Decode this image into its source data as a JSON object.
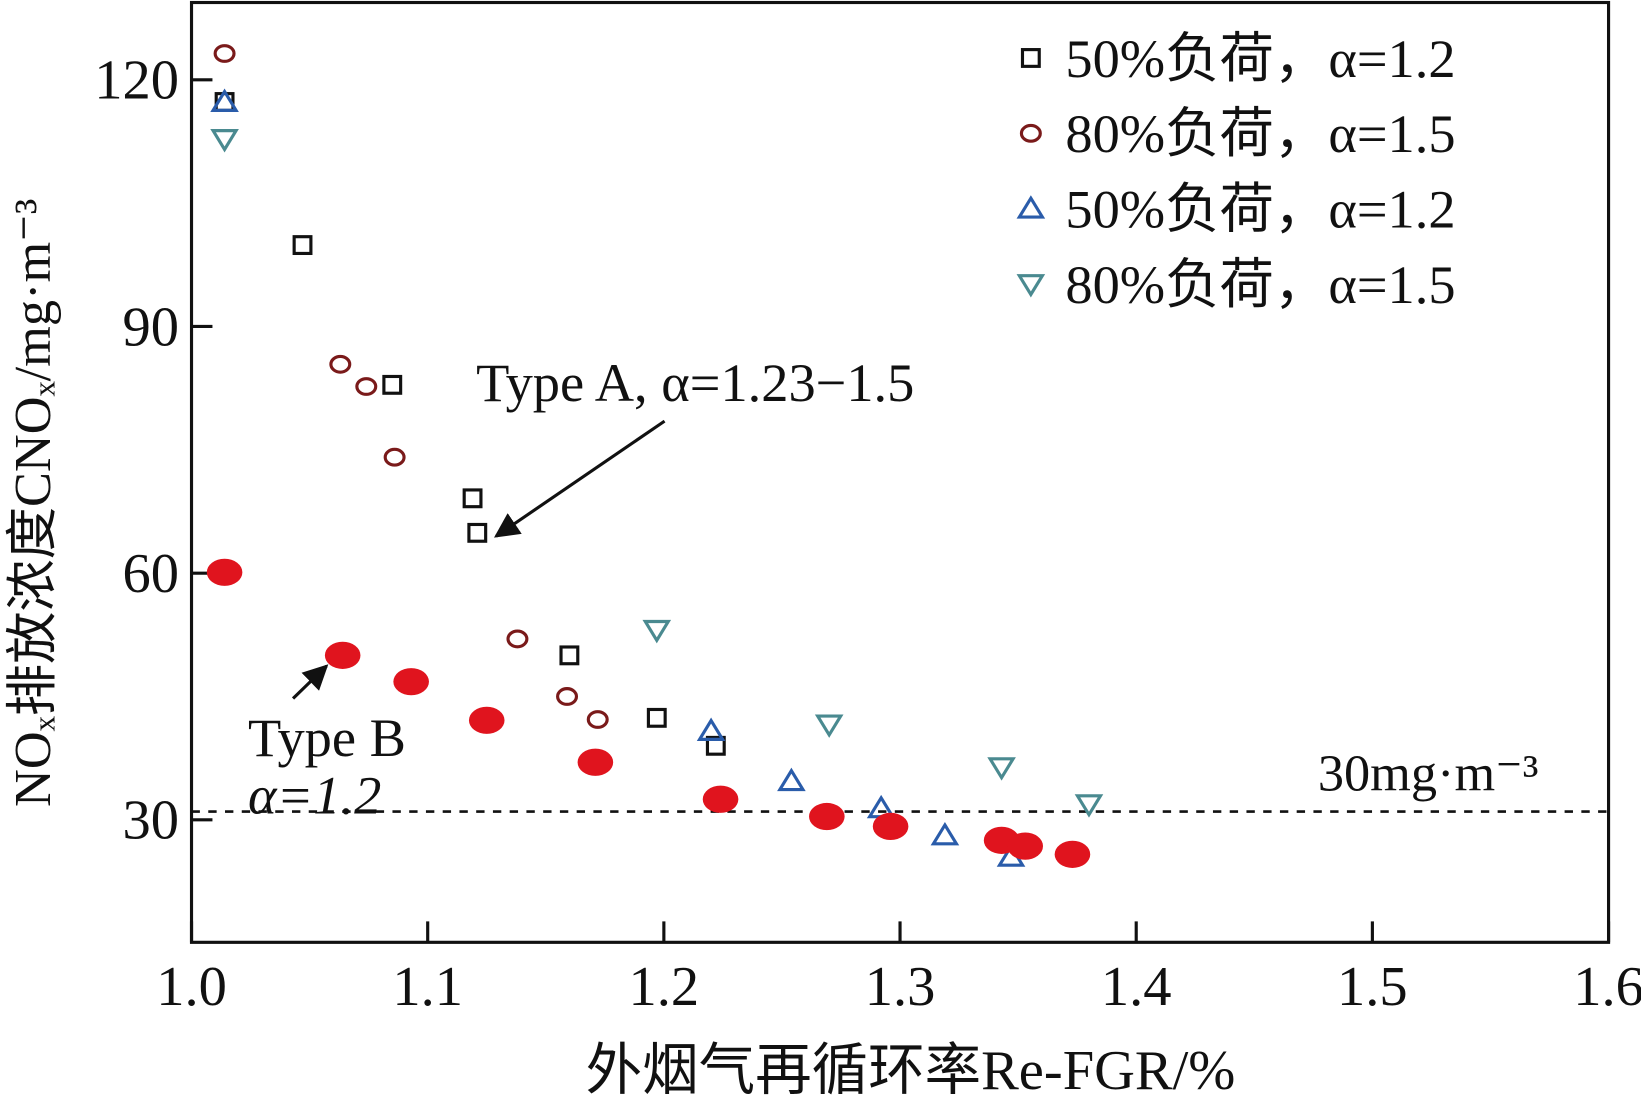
{
  "chart_data": {
    "type": "scatter",
    "x_label": "外烟气再循环率Re-FGR/%",
    "y_label": "NOₓ排放浓度CNOₓ/mg·m⁻³",
    "xlim": [
      1.0,
      1.6
    ],
    "xticks": [
      {
        "value": 1.0,
        "label": "1.0"
      },
      {
        "value": 1.1,
        "label": "1.1"
      },
      {
        "value": 1.2,
        "label": "1.2"
      },
      {
        "value": 1.3,
        "label": "1.3"
      },
      {
        "value": 1.4,
        "label": "1.4"
      },
      {
        "value": 1.5,
        "label": "1.5"
      },
      {
        "value": 1.6,
        "label": "1.6"
      }
    ],
    "ylim": [
      15.1,
      129.4
    ],
    "yticks": [
      30,
      60,
      90,
      120
    ],
    "legend": "upper right",
    "series": [
      {
        "name": "50%负荷，α=1.2",
        "color": "#111111",
        "marker": "square",
        "x": [
          1.014,
          1.047,
          1.085,
          1.119,
          1.121,
          1.16,
          1.197,
          1.222
        ],
        "y": [
          117.3,
          99.9,
          82.9,
          69.1,
          64.9,
          50.0,
          42.4,
          39.0
        ]
      },
      {
        "name": "80%负荷，α=1.5",
        "color": "#7a1a1a",
        "marker": "circle",
        "x": [
          1.014,
          1.063,
          1.074,
          1.086,
          1.138,
          1.159,
          1.172
        ],
        "y": [
          123.2,
          85.4,
          82.7,
          74.1,
          52.0,
          45.0,
          42.2
        ]
      },
      {
        "name": "50%负荷，α=1.2",
        "color": "#2a5caa",
        "marker": "triangle-up",
        "x": [
          1.014,
          1.22,
          1.254,
          1.292,
          1.319,
          1.347
        ],
        "y": [
          117.3,
          40.8,
          34.7,
          31.4,
          28.1,
          25.5
        ]
      },
      {
        "name": "80%负荷，α=1.5",
        "color": "#4a8a90",
        "marker": "triangle-down",
        "x": [
          1.014,
          1.197,
          1.27,
          1.343,
          1.38
        ],
        "y": [
          112.8,
          53.1,
          41.6,
          36.4,
          31.9
        ]
      },
      {
        "color": "#e0141e",
        "marker": "filled-ellipse",
        "x": [
          1.014,
          1.064,
          1.093,
          1.125,
          1.171,
          1.224,
          1.269,
          1.296,
          1.343,
          1.353,
          1.373
        ],
        "y": [
          60.1,
          50.0,
          46.8,
          42.1,
          37.0,
          32.5,
          30.4,
          29.2,
          27.5,
          26.8,
          25.8
        ]
      }
    ],
    "reference_line": {
      "value": 31,
      "label": "30mg·m⁻³"
    },
    "annotations": [
      "Type A, α=1.23−1.5",
      "Type B",
      "α=1.2"
    ]
  }
}
